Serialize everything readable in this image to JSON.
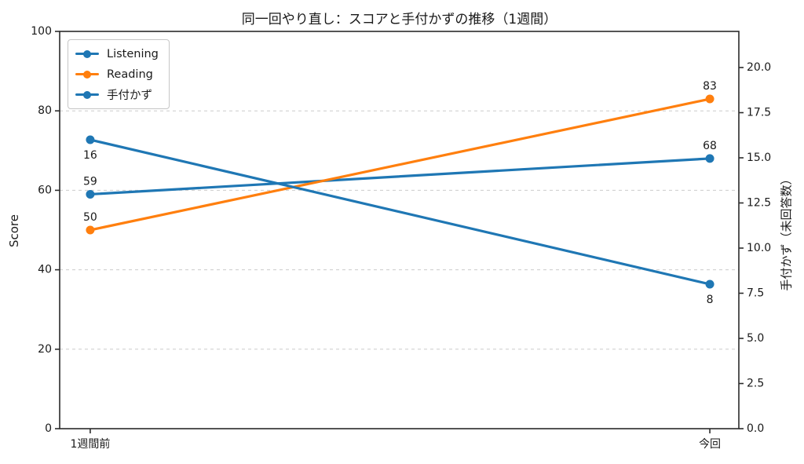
{
  "title": "同一回やり直し：スコアと手付かずの推移（1週間）",
  "chart_data": {
    "type": "line",
    "categories": [
      "1週間前",
      "今回"
    ],
    "series": [
      {
        "name": "Listening",
        "axis": "left",
        "color": "#1f77b4",
        "values": [
          59,
          68
        ],
        "label_position": "above"
      },
      {
        "name": "Reading",
        "axis": "left",
        "color": "#ff7f0e",
        "values": [
          50,
          83
        ],
        "label_position": "above"
      },
      {
        "name": "手付かず",
        "axis": "right",
        "color": "#1f77b4",
        "values": [
          16,
          8
        ],
        "label_position": "below"
      }
    ],
    "axis_left": {
      "label": "Score",
      "range": [
        0,
        100
      ],
      "ticks": [
        0,
        20,
        40,
        60,
        80,
        100
      ]
    },
    "axis_right": {
      "label": "手付かず（未回答数）",
      "range": [
        0,
        22
      ],
      "ticks": [
        0.0,
        2.5,
        5.0,
        7.5,
        10.0,
        12.5,
        15.0,
        17.5,
        20.0
      ],
      "tick_decimals": 1
    },
    "grid": {
      "show": true,
      "style": "dashed",
      "color": "#cccccc",
      "at_left_ticks": [
        20,
        40,
        60,
        80
      ]
    },
    "legend": {
      "position": "upper-left",
      "entries": [
        "Listening",
        "Reading",
        "手付かず"
      ]
    }
  },
  "colors": {
    "background": "#ffffff",
    "text": "#1a1a1a",
    "spine": "#2b2b2b",
    "grid": "#cccccc",
    "blue": "#1f77b4",
    "orange": "#ff7f0e"
  }
}
